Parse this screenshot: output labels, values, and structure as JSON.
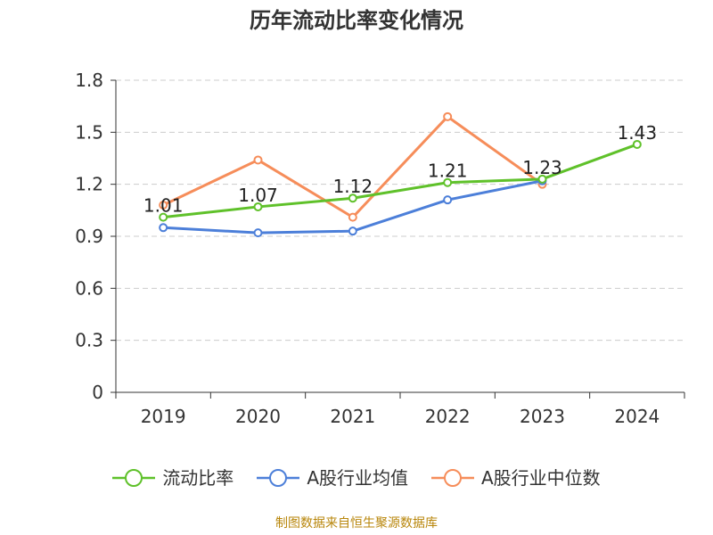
{
  "title": "历年流动比率变化情况",
  "source_note": "制图数据来自恒生聚源数据库",
  "chart_data": {
    "type": "line",
    "title": "历年流动比率变化情况",
    "categories": [
      "2019",
      "2020",
      "2021",
      "2022",
      "2023",
      "2024"
    ],
    "y_ticks": [
      "0",
      "0.3",
      "0.6",
      "0.9",
      "1.2",
      "1.5",
      "1.8"
    ],
    "ylim": [
      0,
      1.8
    ],
    "grid": true,
    "legend_position": "bottom",
    "series": [
      {
        "name": "流动比率",
        "color": "#5fc12a",
        "values": [
          1.01,
          1.07,
          1.12,
          1.21,
          1.23,
          1.43
        ],
        "labels": [
          "1.01",
          "1.07",
          "1.12",
          "1.21",
          "1.23",
          "1.43"
        ]
      },
      {
        "name": "A股行业均值",
        "color": "#4c7fd9",
        "values": [
          0.95,
          0.92,
          0.93,
          1.11,
          1.22,
          null
        ]
      },
      {
        "name": "A股行业中位数",
        "color": "#f68d5a",
        "values": [
          1.08,
          1.34,
          1.01,
          1.59,
          1.2,
          null
        ]
      }
    ]
  }
}
